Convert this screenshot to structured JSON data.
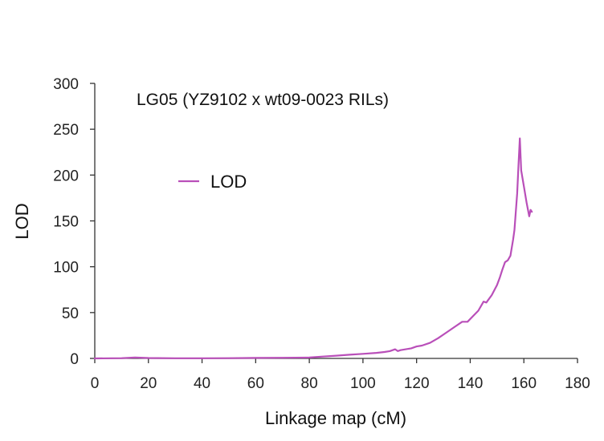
{
  "chart_data": {
    "type": "line",
    "title": "LG05 (YZ9102 x wt09-0023 RILs)",
    "xlabel": "Linkage map (cM)",
    "ylabel": "LOD",
    "xlim": [
      0,
      180
    ],
    "ylim": [
      0,
      300
    ],
    "xticks": [
      0,
      20,
      40,
      60,
      80,
      100,
      120,
      140,
      160,
      180
    ],
    "yticks": [
      0,
      50,
      100,
      150,
      200,
      250,
      300
    ],
    "grid": false,
    "legend": {
      "position": "upper-left",
      "entries": [
        "LOD"
      ]
    },
    "colors": {
      "LOD": "#b94fb9"
    },
    "series": [
      {
        "name": "LOD",
        "x": [
          0,
          10,
          15,
          20,
          30,
          40,
          50,
          60,
          70,
          80,
          85,
          90,
          95,
          100,
          105,
          108,
          110,
          112,
          113,
          114,
          116,
          118,
          120,
          122,
          125,
          128,
          131,
          134,
          137,
          139,
          141,
          143,
          145,
          146,
          148,
          150,
          151,
          152,
          153,
          154,
          155,
          156,
          156.5,
          157,
          157.5,
          158,
          158.5,
          159,
          160,
          161,
          162,
          162.5,
          163
        ],
        "y": [
          0,
          0.3,
          1,
          0.4,
          0.2,
          0.2,
          0.3,
          0.5,
          0.7,
          1,
          2,
          3,
          4,
          5,
          6,
          7,
          8,
          10,
          8,
          9,
          10,
          11,
          13,
          14,
          17,
          22,
          28,
          34,
          40,
          40,
          46,
          52,
          62,
          61,
          69,
          80,
          88,
          97,
          105,
          107,
          112,
          130,
          140,
          160,
          180,
          210,
          240,
          205,
          188,
          170,
          155,
          162,
          160
        ]
      }
    ]
  }
}
